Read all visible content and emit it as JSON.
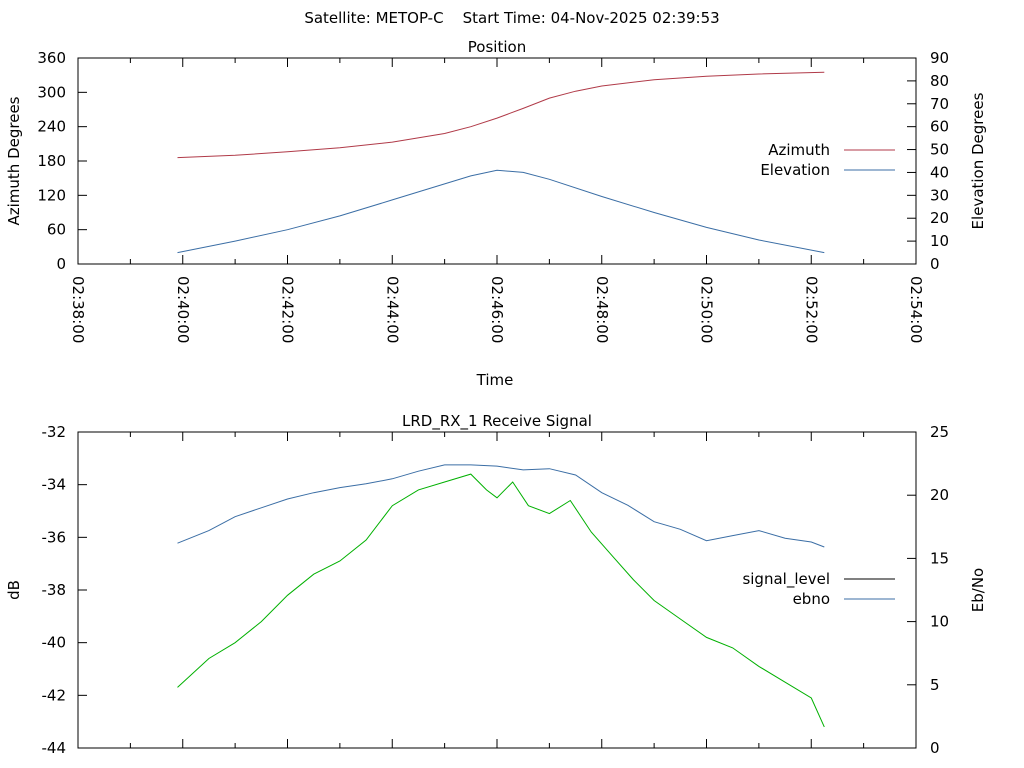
{
  "header": {
    "title": "Satellite: METOP-C    Start Time: 04-Nov-2025 02:39:53"
  },
  "chart_data": [
    {
      "type": "line",
      "title": "Position",
      "xlabel": "Time",
      "ylabel_left": "Azimuth Degrees",
      "ylabel_right": "Elevation Degrees",
      "x_ticks": [
        "02:38:00",
        "02:40:00",
        "02:42:00",
        "02:44:00",
        "02:46:00",
        "02:48:00",
        "02:50:00",
        "02:52:00",
        "02:54:00"
      ],
      "xlim_min": [
        0,
        16
      ],
      "ylim_left": [
        0,
        360
      ],
      "ylim_right": [
        0,
        90
      ],
      "yticks_left": [
        "0",
        "60",
        "120",
        "180",
        "240",
        "300",
        "360"
      ],
      "yticks_right": [
        "0",
        "10",
        "20",
        "30",
        "40",
        "50",
        "60",
        "70",
        "80",
        "90"
      ],
      "legend": [
        "Azimuth",
        "Elevation"
      ],
      "series": [
        {
          "name": "Azimuth",
          "axis": "left",
          "color": "#b03a48",
          "x": [
            1.9,
            3,
            4,
            5,
            6,
            7,
            7.5,
            8,
            8.5,
            9,
            9.5,
            10,
            11,
            12,
            13,
            14.25
          ],
          "values": [
            186,
            190,
            196,
            203,
            213,
            228,
            240,
            255,
            272,
            290,
            302,
            311,
            322,
            328,
            332,
            335
          ]
        },
        {
          "name": "Elevation",
          "axis": "right",
          "color": "#3b6ea5",
          "x": [
            1.9,
            3,
            4,
            5,
            6,
            7,
            7.5,
            8,
            8.5,
            9,
            10,
            11,
            12,
            13,
            14.25
          ],
          "values": [
            5,
            10,
            15,
            21,
            28,
            35,
            38.5,
            41,
            40,
            37,
            29.5,
            22.5,
            16,
            10.5,
            5
          ]
        }
      ]
    },
    {
      "type": "line",
      "title": "LRD_RX_1 Receive Signal",
      "xlabel": "",
      "ylabel_left": "dB",
      "ylabel_right": "Eb/No",
      "xlim_min": [
        0,
        16
      ],
      "ylim_left": [
        -44,
        -32
      ],
      "ylim_right": [
        0,
        25
      ],
      "yticks_left": [
        "-32",
        "-34",
        "-36",
        "-38",
        "-40",
        "-42",
        "-44"
      ],
      "yticks_right": [
        "0",
        "5",
        "10",
        "15",
        "20",
        "25"
      ],
      "legend": [
        "signal_level",
        "ebno"
      ],
      "series": [
        {
          "name": "signal_level",
          "axis": "left",
          "color": "#00b000",
          "x": [
            1.9,
            2.5,
            3,
            3.5,
            4,
            4.5,
            5,
            5.5,
            6,
            6.5,
            7,
            7.5,
            7.8,
            8,
            8.3,
            8.6,
            9,
            9.4,
            9.8,
            10.2,
            10.6,
            11,
            11.5,
            12,
            12.5,
            13,
            13.5,
            14,
            14.25
          ],
          "values": [
            -41.7,
            -40.6,
            -40.0,
            -39.2,
            -38.2,
            -37.4,
            -36.9,
            -36.1,
            -34.8,
            -34.2,
            -33.9,
            -33.6,
            -34.2,
            -34.5,
            -33.9,
            -34.8,
            -35.1,
            -34.6,
            -35.8,
            -36.7,
            -37.6,
            -38.4,
            -39.1,
            -39.8,
            -40.2,
            -40.9,
            -41.5,
            -42.1,
            -43.2
          ]
        },
        {
          "name": "ebno",
          "axis": "right",
          "color": "#3b6ea5",
          "x": [
            1.9,
            2.5,
            3,
            3.5,
            4,
            4.5,
            5,
            5.5,
            6,
            6.5,
            7,
            7.5,
            8,
            8.5,
            9,
            9.5,
            10,
            10.5,
            11,
            11.5,
            12,
            12.5,
            13,
            13.5,
            14,
            14.25
          ],
          "values": [
            16.2,
            17.2,
            18.3,
            19.0,
            19.7,
            20.2,
            20.6,
            20.9,
            21.3,
            21.9,
            22.4,
            22.4,
            22.3,
            22.0,
            22.1,
            21.6,
            20.2,
            19.2,
            17.9,
            17.3,
            16.4,
            16.8,
            17.2,
            16.6,
            16.3,
            15.9
          ]
        }
      ]
    }
  ]
}
